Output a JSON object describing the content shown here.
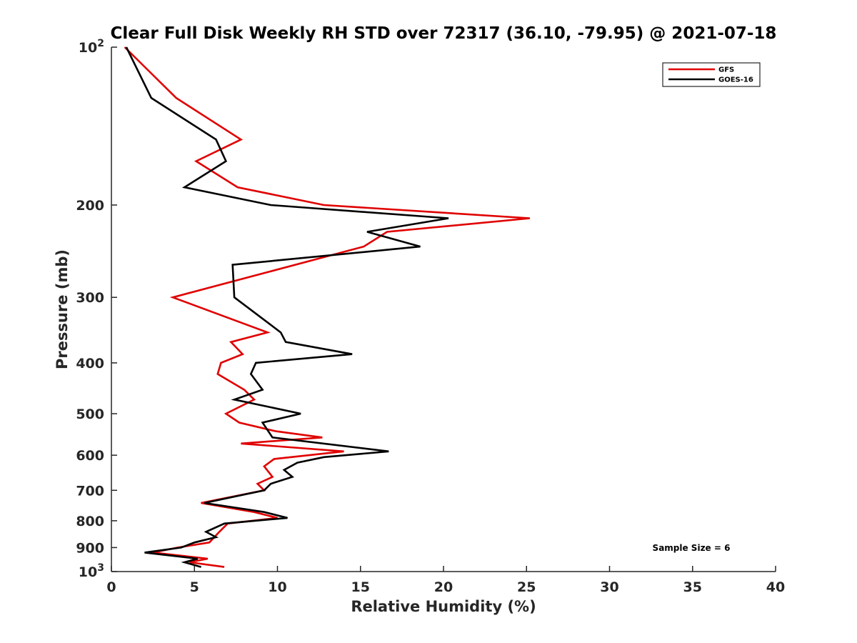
{
  "chart_data": {
    "type": "line",
    "title": "Clear Full Disk Weekly RH STD over 72317 (36.10, -79.95) @ 2021-07-18",
    "xlabel": "Relative Humidity (%)",
    "ylabel": "Pressure (mb)",
    "xlim": [
      0,
      40
    ],
    "ylim": [
      100,
      1000
    ],
    "y_scale": "log",
    "y_reversed": true,
    "x_ticks": [
      0,
      5,
      10,
      15,
      20,
      25,
      30,
      35,
      40
    ],
    "x_tick_labels": [
      "0",
      "5",
      "10",
      "15",
      "20",
      "25",
      "30",
      "35",
      "40"
    ],
    "y_ticks": [
      200,
      300,
      400,
      500,
      600,
      700,
      800,
      900
    ],
    "y_tick_labels": [
      "200",
      "300",
      "400",
      "500",
      "600",
      "700",
      "800",
      "900"
    ],
    "y_power_ticks": [
      {
        "value": 100,
        "base": "10",
        "exp": "2"
      },
      {
        "value": 1000,
        "base": "10",
        "exp": "3"
      }
    ],
    "grid": false,
    "legend_position": "top-right",
    "annotation": "Sample Size = 6",
    "series": [
      {
        "name": "GFS",
        "color": "#e00000",
        "x": [
          0.8,
          3.9,
          7.8,
          5.1,
          7.6,
          12.8,
          25.2,
          16.6,
          15.2,
          3.7,
          9.4,
          7.2,
          7.9,
          6.6,
          6.4,
          8.0,
          8.6,
          6.9,
          7.7,
          9.9,
          12.7,
          7.8,
          14.0,
          9.8,
          9.2,
          9.7,
          8.8,
          9.2,
          5.4,
          8.6,
          10.0,
          7.0,
          6.5,
          6.2,
          5.9,
          4.0,
          2.5,
          5.8,
          4.7,
          6.8
        ],
        "y": [
          100,
          125,
          150,
          165,
          185,
          200,
          212,
          225,
          240,
          300,
          350,
          365,
          385,
          400,
          420,
          450,
          470,
          500,
          520,
          540,
          555,
          570,
          590,
          610,
          630,
          660,
          680,
          700,
          740,
          770,
          790,
          810,
          840,
          860,
          880,
          900,
          920,
          945,
          960,
          980
        ]
      },
      {
        "name": "GOES-16",
        "color": "#000000",
        "x": [
          0.9,
          2.4,
          6.3,
          6.9,
          4.4,
          9.6,
          20.3,
          15.4,
          18.6,
          7.3,
          7.4,
          10.2,
          10.5,
          14.5,
          8.7,
          8.4,
          9.1,
          7.4,
          11.4,
          9.1,
          9.7,
          16.7,
          12.8,
          11.2,
          10.4,
          10.9,
          9.6,
          9.2,
          5.6,
          9.2,
          10.6,
          6.8,
          5.7,
          6.3,
          5.0,
          4.2,
          2.0,
          5.2,
          4.4,
          5.4
        ],
        "y": [
          100,
          125,
          150,
          165,
          185,
          200,
          212,
          225,
          240,
          260,
          300,
          350,
          365,
          385,
          400,
          420,
          450,
          470,
          500,
          520,
          555,
          590,
          605,
          620,
          640,
          660,
          680,
          700,
          740,
          770,
          790,
          810,
          840,
          860,
          880,
          900,
          920,
          945,
          960,
          980
        ]
      }
    ]
  }
}
